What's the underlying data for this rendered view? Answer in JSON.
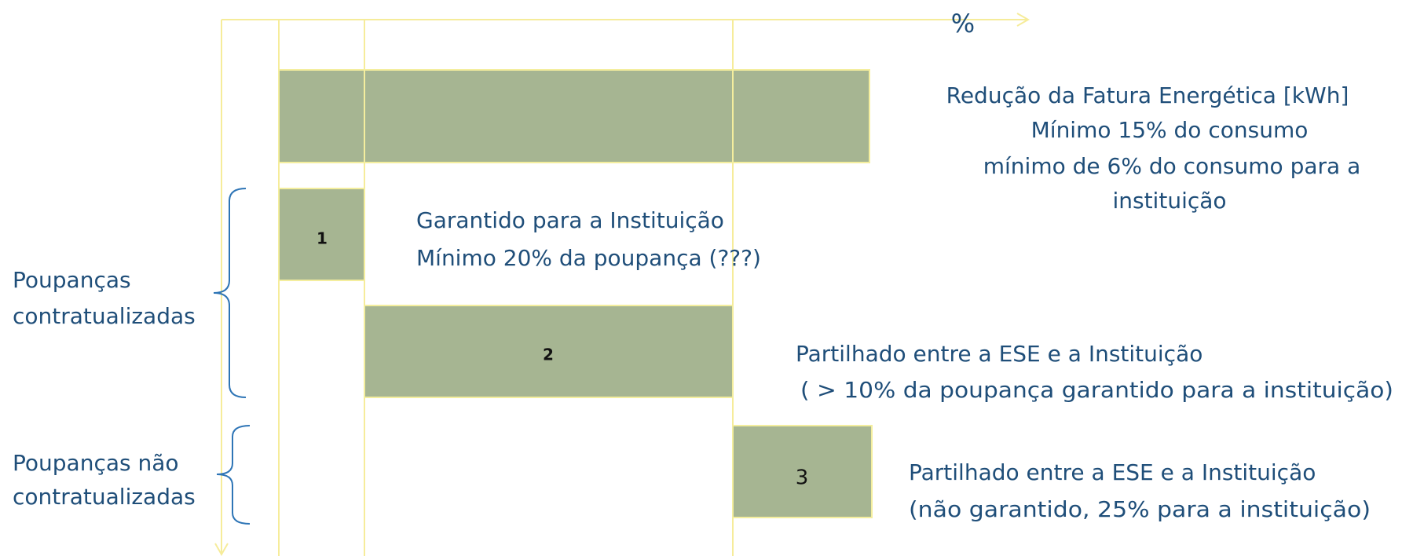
{
  "axis_label": "%",
  "top_bar": {
    "description": [
      "Redução da Fatura Energética [kWh]",
      "Mínimo 15% do consumo",
      "mínimo de 6% do consumo para a",
      "instituição"
    ]
  },
  "boxes": [
    {
      "number": "1",
      "description": [
        "Garantido para a Instituição",
        "Mínimo 20% da poupança (???)"
      ]
    },
    {
      "number": "2",
      "description": [
        "Partilhado entre a ESE e a Instituição",
        "( > 10% da poupança garantido para a instituição)"
      ]
    },
    {
      "number": "3",
      "description": [
        "Partilhado entre a ESE e a Instituição",
        "(não garantido, 25% para a instituição)"
      ]
    }
  ],
  "groups": [
    {
      "label": [
        "Poupanças",
        "contratualizadas"
      ]
    },
    {
      "label": [
        "Poupanças não",
        "contratualizadas"
      ]
    }
  ]
}
